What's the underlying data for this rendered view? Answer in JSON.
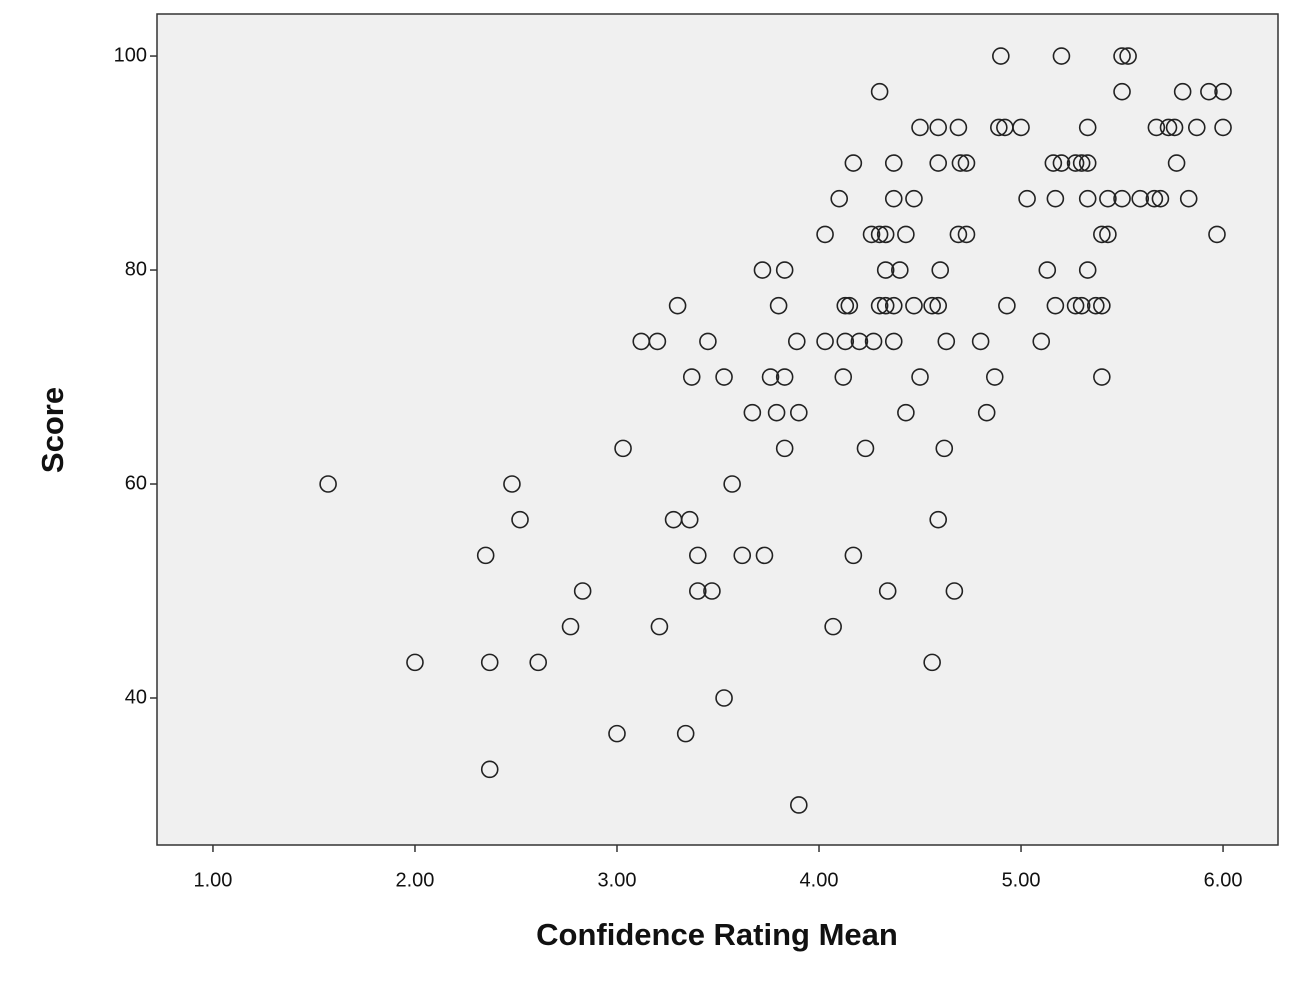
{
  "chart_data": {
    "type": "scatter",
    "x_label": "Confidence Rating Mean",
    "y_label": "Score",
    "x": [
      4.9,
      5.2,
      5.5,
      5.53,
      4.3,
      5.5,
      5.8,
      5.93,
      6.0,
      4.5,
      4.59,
      4.69,
      4.89,
      4.92,
      5.0,
      5.33,
      5.67,
      5.73,
      5.76,
      5.87,
      6.0,
      4.17,
      4.37,
      4.59,
      4.7,
      4.73,
      5.16,
      5.2,
      5.27,
      5.3,
      5.33,
      5.77,
      4.1,
      4.37,
      4.47,
      5.03,
      5.17,
      5.33,
      5.43,
      5.5,
      5.59,
      5.66,
      5.69,
      5.83,
      4.03,
      4.26,
      4.3,
      4.33,
      4.43,
      4.69,
      4.73,
      5.4,
      5.43,
      5.97,
      3.72,
      3.83,
      4.33,
      4.4,
      4.6,
      5.13,
      5.33,
      3.3,
      3.8,
      4.13,
      4.15,
      4.3,
      4.33,
      4.37,
      4.47,
      4.56,
      4.59,
      4.93,
      5.17,
      5.27,
      5.3,
      5.37,
      5.4,
      3.12,
      3.2,
      3.45,
      3.89,
      4.03,
      4.13,
      4.2,
      4.27,
      4.37,
      4.63,
      4.8,
      5.1,
      3.37,
      3.53,
      3.76,
      3.83,
      4.12,
      4.5,
      4.87,
      5.4,
      3.67,
      3.79,
      3.9,
      4.43,
      4.83,
      3.03,
      3.83,
      4.23,
      4.62,
      1.57,
      2.48,
      3.57,
      2.52,
      3.28,
      3.36,
      4.59,
      2.35,
      3.4,
      3.62,
      3.73,
      4.17,
      2.83,
      3.4,
      3.47,
      4.34,
      4.67,
      2.77,
      3.21,
      4.07,
      2.0,
      2.37,
      2.61,
      4.56,
      3.53,
      3.0,
      3.34,
      2.37,
      3.9
    ],
    "y": [
      100,
      100,
      100,
      100,
      96.67,
      96.67,
      96.67,
      96.67,
      96.67,
      93.33,
      93.33,
      93.33,
      93.33,
      93.33,
      93.33,
      93.33,
      93.33,
      93.33,
      93.33,
      93.33,
      93.33,
      90,
      90,
      90,
      90,
      90,
      90,
      90,
      90,
      90,
      90,
      90,
      86.67,
      86.67,
      86.67,
      86.67,
      86.67,
      86.67,
      86.67,
      86.67,
      86.67,
      86.67,
      86.67,
      86.67,
      83.33,
      83.33,
      83.33,
      83.33,
      83.33,
      83.33,
      83.33,
      83.33,
      83.33,
      83.33,
      80,
      80,
      80,
      80,
      80,
      80,
      80,
      76.67,
      76.67,
      76.67,
      76.67,
      76.67,
      76.67,
      76.67,
      76.67,
      76.67,
      76.67,
      76.67,
      76.67,
      76.67,
      76.67,
      76.67,
      76.67,
      73.33,
      73.33,
      73.33,
      73.33,
      73.33,
      73.33,
      73.33,
      73.33,
      73.33,
      73.33,
      73.33,
      73.33,
      70,
      70,
      70,
      70,
      70,
      70,
      70,
      70,
      66.67,
      66.67,
      66.67,
      66.67,
      66.67,
      63.33,
      63.33,
      63.33,
      63.33,
      60,
      60,
      60,
      56.67,
      56.67,
      56.67,
      56.67,
      53.33,
      53.33,
      53.33,
      53.33,
      53.33,
      50,
      50,
      50,
      50,
      50,
      46.67,
      46.67,
      46.67,
      43.33,
      43.33,
      43.33,
      43.33,
      40,
      36.67,
      36.67,
      33.33,
      30
    ],
    "xlim": [
      0.723,
      6.272
    ],
    "ylim": [
      26.26,
      103.93
    ],
    "xticks": [
      {
        "value": 1,
        "label": "1.00"
      },
      {
        "value": 2,
        "label": "2.00"
      },
      {
        "value": 3,
        "label": "3.00"
      },
      {
        "value": 4,
        "label": "4.00"
      },
      {
        "value": 5,
        "label": "5.00"
      },
      {
        "value": 6,
        "label": "6.00"
      }
    ],
    "yticks": [
      40,
      60,
      80,
      100
    ],
    "marker_color": "#222222",
    "plot_background": "#f0f0f0"
  }
}
